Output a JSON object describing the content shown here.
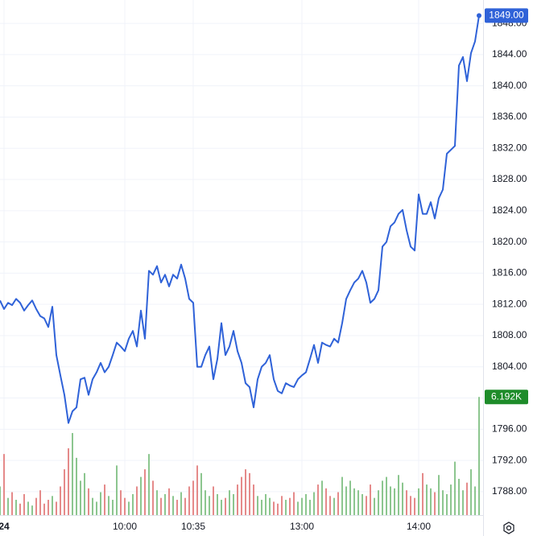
{
  "chart_data": {
    "type": "line",
    "xlim": [
      0,
      120
    ],
    "xticks": [
      {
        "value": 1,
        "label": "24"
      },
      {
        "value": 31,
        "label": "10:00"
      },
      {
        "value": 48,
        "label": "10:35"
      },
      {
        "value": 75,
        "label": "13:00"
      },
      {
        "value": 104,
        "label": "14:00"
      }
    ],
    "ylim": [
      1785,
      1851
    ],
    "yticks": [
      {
        "value": 1788,
        "label": "1788.00"
      },
      {
        "value": 1792,
        "label": "1792.00"
      },
      {
        "value": 1796,
        "label": "1796.00"
      },
      {
        "value": 1800,
        "label": "1800.00"
      },
      {
        "value": 1804,
        "label": "1804.00"
      },
      {
        "value": 1808,
        "label": "1808.00"
      },
      {
        "value": 1812,
        "label": "1812.00"
      },
      {
        "value": 1816,
        "label": "1816.00"
      },
      {
        "value": 1820,
        "label": "1820.00"
      },
      {
        "value": 1824,
        "label": "1824.00"
      },
      {
        "value": 1828,
        "label": "1828.00"
      },
      {
        "value": 1832,
        "label": "1832.00"
      },
      {
        "value": 1836,
        "label": "1836.00"
      },
      {
        "value": 1840,
        "label": "1840.00"
      },
      {
        "value": 1844,
        "label": "1844.00"
      },
      {
        "value": 1848,
        "label": "1848.00"
      }
    ],
    "y2lim": [
      0,
      27000
    ],
    "grid": true,
    "series": [
      {
        "type": "line",
        "color": "#2f62d8",
        "last_label": "1849.00",
        "values": [
          1812.5,
          1811.4,
          1812.2,
          1811.9,
          1812.7,
          1812.2,
          1811.2,
          1811.9,
          1812.5,
          1811.4,
          1810.5,
          1810.2,
          1809.1,
          1811.7,
          1805.5,
          1802.9,
          1800.4,
          1796.8,
          1798.3,
          1798.8,
          1802.4,
          1802.6,
          1800.4,
          1802.4,
          1803.3,
          1804.5,
          1803.3,
          1804.0,
          1805.5,
          1807.1,
          1806.6,
          1806.0,
          1807.6,
          1808.6,
          1806.6,
          1811.2,
          1807.6,
          1816.3,
          1815.8,
          1816.9,
          1814.8,
          1815.8,
          1814.3,
          1815.8,
          1815.3,
          1817.1,
          1815.3,
          1812.7,
          1812.2,
          1804.0,
          1804.0,
          1805.5,
          1806.6,
          1802.4,
          1805.0,
          1809.6,
          1805.5,
          1806.6,
          1808.6,
          1806.0,
          1804.5,
          1801.9,
          1801.4,
          1798.8,
          1802.4,
          1804.0,
          1804.5,
          1805.5,
          1802.4,
          1800.9,
          1800.6,
          1801.9,
          1801.6,
          1801.4,
          1802.4,
          1802.9,
          1803.3,
          1805.0,
          1806.8,
          1804.5,
          1807.1,
          1806.8,
          1806.6,
          1807.6,
          1807.1,
          1809.6,
          1812.7,
          1813.8,
          1814.8,
          1815.3,
          1816.3,
          1814.8,
          1812.2,
          1812.7,
          1813.8,
          1819.4,
          1820.0,
          1822.0,
          1822.5,
          1823.6,
          1824.1,
          1821.5,
          1819.4,
          1818.9,
          1826.1,
          1823.6,
          1823.6,
          1825.1,
          1823.0,
          1825.6,
          1826.7,
          1831.3,
          1831.8,
          1832.3,
          1842.6,
          1843.7,
          1840.6,
          1844.2,
          1845.7,
          1849.0
        ]
      },
      {
        "type": "bar",
        "axis": "y2",
        "up_color": "#8cc68f",
        "down_color": "#e58a8a",
        "label_color": "#1e8c2a",
        "last_label": "6.192K",
        "values": [
          1500,
          3200,
          900,
          1200,
          800,
          600,
          1100,
          700,
          500,
          900,
          1300,
          600,
          800,
          1000,
          700,
          1500,
          2400,
          3500,
          4300,
          3000,
          1800,
          2200,
          1400,
          900,
          700,
          1200,
          1600,
          1000,
          800,
          2600,
          1300,
          900,
          700,
          1100,
          1500,
          2000,
          2400,
          3200,
          1800,
          1300,
          900,
          1100,
          1400,
          1000,
          800,
          1200,
          900,
          1500,
          1800,
          2600,
          2200,
          1300,
          1000,
          1500,
          1100,
          800,
          900,
          1300,
          1100,
          1600,
          2000,
          2400,
          2200,
          1600,
          1000,
          800,
          1100,
          900,
          700,
          600,
          1000,
          800,
          900,
          1200,
          700,
          900,
          1100,
          800,
          1200,
          1600,
          1800,
          1400,
          1000,
          900,
          1200,
          2000,
          1500,
          1800,
          1400,
          1300,
          1100,
          1000,
          1600,
          900,
          1300,
          1800,
          2000,
          1500,
          1400,
          2100,
          1700,
          1300,
          1000,
          900,
          1400,
          2200,
          1600,
          1400,
          1200,
          2100,
          1300,
          1100,
          1600,
          2800,
          1900,
          1300,
          1700,
          2400,
          1500,
          6192
        ]
      }
    ]
  }
}
